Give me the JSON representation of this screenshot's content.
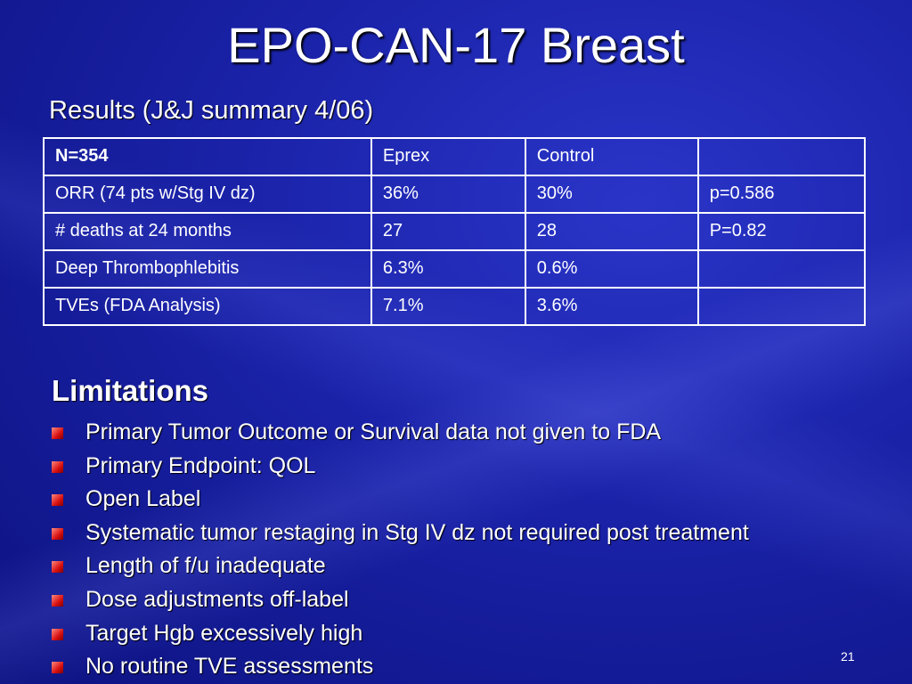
{
  "title": "EPO-CAN-17 Breast",
  "subtitle": "Results (J&J summary 4/06)",
  "table": {
    "rows": [
      [
        "N=354",
        "Eprex",
        "Control"
      ],
      [
        "ORR (74 pts w/Stg IV dz)",
        "36%",
        "30%",
        "p=0.586"
      ],
      [
        "# deaths at 24 months",
        "27",
        "28",
        "P=0.82"
      ],
      [
        "Deep Thrombophlebitis",
        "6.3%",
        "0.6%"
      ],
      [
        "TVEs (FDA Analysis)",
        "7.1%",
        "3.6%"
      ]
    ]
  },
  "limitations": {
    "heading": "Limitations",
    "items": [
      "Primary Tumor Outcome or Survival data not given to FDA",
      "Primary Endpoint: QOL",
      "Open Label",
      "Systematic tumor restaging in Stg IV dz not required post treatment",
      "Length of f/u inadequate",
      "Dose adjustments off-label",
      "Target Hgb excessively high",
      "No routine TVE assessments"
    ]
  },
  "page_number": "21"
}
